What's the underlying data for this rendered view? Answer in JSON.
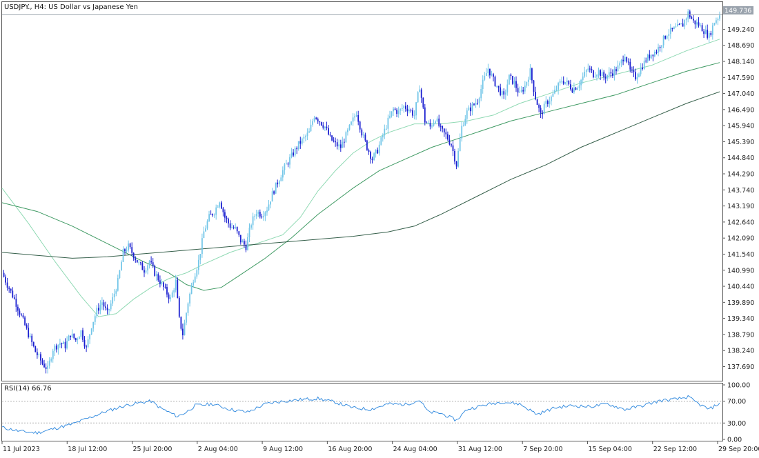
{
  "window": {
    "chart_title": "USDJPY., H4:  US Dollar vs Japanese Yen",
    "current_price": "149.736"
  },
  "indicator": {
    "label": "RSI(14) 66.76"
  },
  "colors": {
    "bull_candle": "#73c6e8",
    "bear_candle": "#1a1fd0",
    "ma_fast": "#8fd9b3",
    "ma_mid": "#3f9a63",
    "ma_slow": "#355f4a",
    "rsi_line": "#3a8fe0",
    "grid_level": "#b0b0b0",
    "price_line": "#9aa3ad"
  },
  "chart_data": [
    {
      "type": "candlestick",
      "title": "USDJPY., H4:  US Dollar vs Japanese Yen",
      "ylim": [
        137.3,
        150.1
      ],
      "y_ticks": [
        "149.240",
        "148.690",
        "148.140",
        "147.590",
        "147.040",
        "146.490",
        "145.940",
        "145.390",
        "144.840",
        "144.290",
        "143.740",
        "143.190",
        "142.640",
        "142.090",
        "141.540",
        "140.990",
        "140.440",
        "139.890",
        "139.340",
        "138.790",
        "138.240",
        "137.690"
      ],
      "x_ticks": [
        "11 Jul 2023",
        "18 Jul 12:00",
        "25 Jul 20:00",
        "2 Aug 04:00",
        "9 Aug 12:00",
        "16 Aug 20:00",
        "24 Aug 04:00",
        "31 Aug 12:00",
        "7 Sep 20:00",
        "15 Sep 04:00",
        "22 Sep 12:00",
        "29 Sep 20:00"
      ],
      "last_price": 149.736,
      "close_path": [
        [
          0,
          140.9
        ],
        [
          3,
          140.5
        ],
        [
          7,
          140.0
        ],
        [
          11,
          139.4
        ],
        [
          15,
          138.8
        ],
        [
          19,
          138.2
        ],
        [
          23,
          137.8
        ],
        [
          26,
          137.6
        ],
        [
          29,
          138.3
        ],
        [
          33,
          138.5
        ],
        [
          36,
          138.4
        ],
        [
          39,
          138.8
        ],
        [
          42,
          138.6
        ],
        [
          45,
          138.9
        ],
        [
          48,
          138.3
        ],
        [
          51,
          139.1
        ],
        [
          54,
          139.6
        ],
        [
          57,
          139.9
        ],
        [
          60,
          139.5
        ],
        [
          63,
          140.0
        ],
        [
          66,
          140.6
        ],
        [
          69,
          141.6
        ],
        [
          72,
          141.8
        ],
        [
          75,
          141.5
        ],
        [
          78,
          141.2
        ],
        [
          81,
          141.0
        ],
        [
          84,
          141.3
        ],
        [
          87,
          140.9
        ],
        [
          90,
          140.6
        ],
        [
          93,
          140.3
        ],
        [
          96,
          140.0
        ],
        [
          99,
          140.6
        ],
        [
          101,
          139.3
        ],
        [
          103,
          138.8
        ],
        [
          106,
          139.9
        ],
        [
          109,
          140.7
        ],
        [
          112,
          141.3
        ],
        [
          115,
          142.3
        ],
        [
          118,
          142.8
        ],
        [
          121,
          143.0
        ],
        [
          124,
          143.4
        ],
        [
          127,
          142.8
        ],
        [
          130,
          142.5
        ],
        [
          133,
          142.4
        ],
        [
          136,
          142.0
        ],
        [
          139,
          141.8
        ],
        [
          142,
          142.6
        ],
        [
          145,
          143.0
        ],
        [
          148,
          142.9
        ],
        [
          151,
          143.1
        ],
        [
          154,
          143.6
        ],
        [
          157,
          144.0
        ],
        [
          160,
          144.4
        ],
        [
          163,
          144.7
        ],
        [
          166,
          145.0
        ],
        [
          169,
          145.3
        ],
        [
          172,
          145.5
        ],
        [
          175,
          145.7
        ],
        [
          178,
          146.3
        ],
        [
          181,
          146.1
        ],
        [
          184,
          145.9
        ],
        [
          187,
          145.5
        ],
        [
          190,
          145.3
        ],
        [
          193,
          145.2
        ],
        [
          196,
          145.6
        ],
        [
          199,
          146.0
        ],
        [
          202,
          146.4
        ],
        [
          205,
          145.7
        ],
        [
          208,
          145.2
        ],
        [
          211,
          144.8
        ],
        [
          214,
          145.1
        ],
        [
          217,
          145.6
        ],
        [
          220,
          146.1
        ],
        [
          223,
          146.5
        ],
        [
          226,
          146.4
        ],
        [
          229,
          146.6
        ],
        [
          232,
          146.5
        ],
        [
          235,
          146.3
        ],
        [
          238,
          147.3
        ],
        [
          241,
          146.1
        ],
        [
          244,
          145.9
        ],
        [
          247,
          146.2
        ],
        [
          250,
          145.8
        ],
        [
          253,
          145.6
        ],
        [
          256,
          145.3
        ],
        [
          259,
          144.6
        ],
        [
          262,
          145.9
        ],
        [
          265,
          146.4
        ],
        [
          268,
          146.6
        ],
        [
          271,
          146.8
        ],
        [
          274,
          147.4
        ],
        [
          277,
          147.9
        ],
        [
          280,
          147.5
        ],
        [
          283,
          147.2
        ],
        [
          286,
          146.9
        ],
        [
          289,
          147.6
        ],
        [
          292,
          147.4
        ],
        [
          295,
          147.0
        ],
        [
          298,
          147.3
        ],
        [
          301,
          147.8
        ],
        [
          304,
          146.9
        ],
        [
          307,
          146.3
        ],
        [
          310,
          146.7
        ],
        [
          313,
          146.9
        ],
        [
          316,
          147.2
        ],
        [
          319,
          147.5
        ],
        [
          322,
          147.4
        ],
        [
          325,
          147.2
        ],
        [
          328,
          147.3
        ],
        [
          331,
          147.6
        ],
        [
          334,
          147.9
        ],
        [
          337,
          147.7
        ],
        [
          340,
          147.8
        ],
        [
          343,
          147.6
        ],
        [
          346,
          147.7
        ],
        [
          349,
          147.8
        ],
        [
          352,
          148.0
        ],
        [
          355,
          148.4
        ],
        [
          358,
          147.8
        ],
        [
          361,
          147.6
        ],
        [
          364,
          147.9
        ],
        [
          367,
          148.2
        ],
        [
          370,
          148.4
        ],
        [
          373,
          148.5
        ],
        [
          376,
          148.8
        ],
        [
          379,
          149.1
        ],
        [
          382,
          149.2
        ],
        [
          385,
          149.3
        ],
        [
          388,
          149.4
        ],
        [
          391,
          149.8
        ],
        [
          394,
          149.5
        ],
        [
          397,
          149.4
        ],
        [
          400,
          149.2
        ],
        [
          403,
          149.0
        ],
        [
          406,
          149.5
        ],
        [
          409,
          149.736
        ]
      ],
      "moving_averages": [
        {
          "role": "fast",
          "path": [
            [
              0,
              143.8
            ],
            [
              15,
              142.6
            ],
            [
              30,
              141.3
            ],
            [
              45,
              140.1
            ],
            [
              55,
              139.4
            ],
            [
              65,
              139.5
            ],
            [
              75,
              140.0
            ],
            [
              85,
              140.4
            ],
            [
              95,
              140.7
            ],
            [
              105,
              140.9
            ],
            [
              115,
              141.2
            ],
            [
              130,
              141.6
            ],
            [
              145,
              141.9
            ],
            [
              160,
              142.2
            ],
            [
              170,
              142.8
            ],
            [
              180,
              143.7
            ],
            [
              190,
              144.4
            ],
            [
              200,
              145.0
            ],
            [
              210,
              145.4
            ],
            [
              220,
              145.7
            ],
            [
              235,
              146.0
            ],
            [
              250,
              146.0
            ],
            [
              265,
              146.1
            ],
            [
              280,
              146.3
            ],
            [
              295,
              146.7
            ],
            [
              310,
              147.0
            ],
            [
              330,
              147.4
            ],
            [
              350,
              147.7
            ],
            [
              370,
              148.0
            ],
            [
              390,
              148.5
            ],
            [
              409,
              148.9
            ]
          ]
        },
        {
          "role": "mid",
          "path": [
            [
              0,
              143.3
            ],
            [
              20,
              143.0
            ],
            [
              40,
              142.5
            ],
            [
              60,
              141.9
            ],
            [
              80,
              141.3
            ],
            [
              95,
              140.9
            ],
            [
              105,
              140.5
            ],
            [
              115,
              140.3
            ],
            [
              125,
              140.4
            ],
            [
              135,
              140.8
            ],
            [
              150,
              141.4
            ],
            [
              165,
              142.1
            ],
            [
              180,
              142.9
            ],
            [
              200,
              143.8
            ],
            [
              215,
              144.4
            ],
            [
              230,
              144.8
            ],
            [
              245,
              145.2
            ],
            [
              260,
              145.5
            ],
            [
              275,
              145.8
            ],
            [
              290,
              146.1
            ],
            [
              310,
              146.4
            ],
            [
              330,
              146.7
            ],
            [
              350,
              147.0
            ],
            [
              370,
              147.4
            ],
            [
              390,
              147.8
            ],
            [
              409,
              148.1
            ]
          ]
        },
        {
          "role": "slow",
          "path": [
            [
              0,
              141.6
            ],
            [
              20,
              141.5
            ],
            [
              40,
              141.4
            ],
            [
              60,
              141.45
            ],
            [
              80,
              141.55
            ],
            [
              100,
              141.65
            ],
            [
              120,
              141.75
            ],
            [
              140,
              141.85
            ],
            [
              160,
              141.95
            ],
            [
              180,
              142.05
            ],
            [
              200,
              142.15
            ],
            [
              220,
              142.3
            ],
            [
              235,
              142.5
            ],
            [
              250,
              142.9
            ],
            [
              270,
              143.5
            ],
            [
              290,
              144.1
            ],
            [
              310,
              144.6
            ],
            [
              330,
              145.2
            ],
            [
              350,
              145.7
            ],
            [
              370,
              146.2
            ],
            [
              390,
              146.7
            ],
            [
              409,
              147.1
            ]
          ]
        }
      ]
    },
    {
      "type": "line",
      "title": "RSI(14) 66.76",
      "ylim": [
        0,
        100
      ],
      "y_ticks": [
        "100.00",
        "70.00",
        "30.00",
        "0.00"
      ],
      "levels": [
        70,
        30
      ],
      "path": [
        [
          0,
          22
        ],
        [
          10,
          15
        ],
        [
          20,
          12
        ],
        [
          30,
          20
        ],
        [
          40,
          28
        ],
        [
          50,
          40
        ],
        [
          60,
          52
        ],
        [
          70,
          62
        ],
        [
          80,
          68
        ],
        [
          85,
          70
        ],
        [
          90,
          58
        ],
        [
          100,
          42
        ],
        [
          105,
          50
        ],
        [
          110,
          62
        ],
        [
          120,
          65
        ],
        [
          130,
          55
        ],
        [
          140,
          50
        ],
        [
          150,
          65
        ],
        [
          160,
          70
        ],
        [
          170,
          73
        ],
        [
          180,
          75
        ],
        [
          190,
          68
        ],
        [
          200,
          58
        ],
        [
          210,
          55
        ],
        [
          220,
          65
        ],
        [
          230,
          64
        ],
        [
          238,
          72
        ],
        [
          243,
          50
        ],
        [
          250,
          48
        ],
        [
          259,
          35
        ],
        [
          265,
          55
        ],
        [
          275,
          63
        ],
        [
          285,
          69
        ],
        [
          295,
          65
        ],
        [
          305,
          46
        ],
        [
          315,
          58
        ],
        [
          325,
          62
        ],
        [
          335,
          60
        ],
        [
          345,
          65
        ],
        [
          355,
          55
        ],
        [
          365,
          62
        ],
        [
          375,
          71
        ],
        [
          385,
          74
        ],
        [
          391,
          78
        ],
        [
          397,
          65
        ],
        [
          403,
          55
        ],
        [
          409,
          66.76
        ]
      ]
    }
  ]
}
